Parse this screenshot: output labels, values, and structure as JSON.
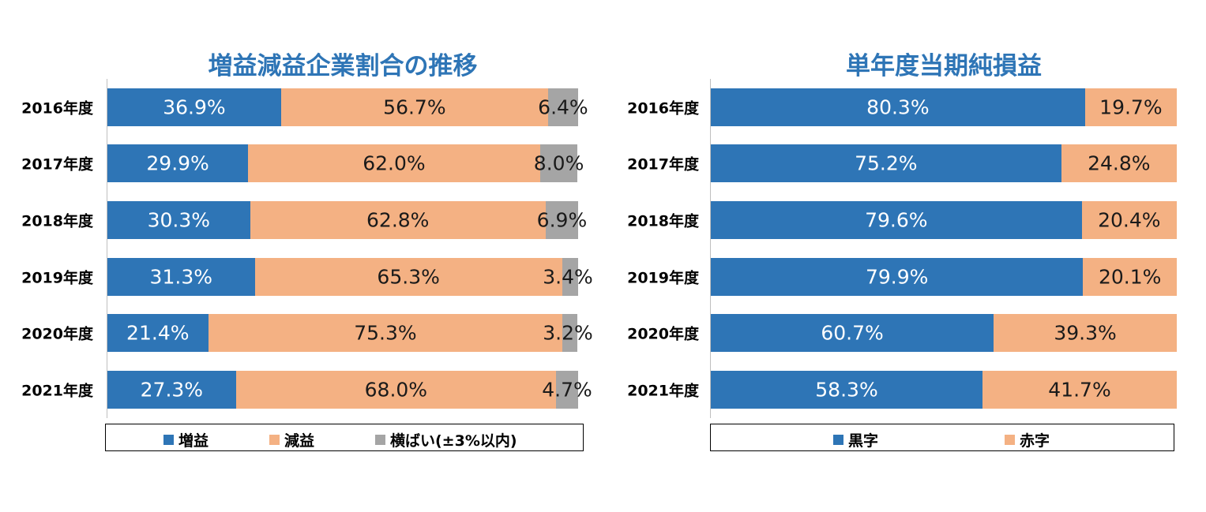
{
  "colors": {
    "blue": "#2e75b6",
    "orange": "#f4b183",
    "gray": "#a5a5a5"
  },
  "chart_data": [
    {
      "type": "bar",
      "orientation": "horizontal",
      "stacked": true,
      "percent": true,
      "title": "増益減益企業割合の推移",
      "categories": [
        "2016年度",
        "2017年度",
        "2018年度",
        "2019年度",
        "2020年度",
        "2021年度"
      ],
      "series": [
        {
          "name": "増益",
          "color": "#2e75b6",
          "values": [
            36.9,
            29.9,
            30.3,
            31.3,
            21.4,
            27.3
          ],
          "labels": [
            "36.9%",
            "29.9%",
            "30.3%",
            "31.3%",
            "21.4%",
            "27.3%"
          ]
        },
        {
          "name": "減益",
          "color": "#f4b183",
          "values": [
            56.7,
            62.0,
            62.8,
            65.3,
            75.3,
            68.0
          ],
          "labels": [
            "56.7%",
            "62.0%",
            "62.8%",
            "65.3%",
            "75.3%",
            "68.0%"
          ]
        },
        {
          "name": "横ばい(±3%以内)",
          "color": "#a5a5a5",
          "values": [
            6.4,
            8.0,
            6.9,
            3.4,
            3.2,
            4.7
          ],
          "labels": [
            "6.4%",
            "8.0%",
            "6.9%",
            "3.4%",
            "3.2%",
            "4.7%"
          ]
        }
      ],
      "xlim": [
        0,
        100
      ],
      "legend_position": "bottom"
    },
    {
      "type": "bar",
      "orientation": "horizontal",
      "stacked": true,
      "percent": true,
      "title": "単年度当期純損益",
      "categories": [
        "2016年度",
        "2017年度",
        "2018年度",
        "2019年度",
        "2020年度",
        "2021年度"
      ],
      "series": [
        {
          "name": "黒字",
          "color": "#2e75b6",
          "values": [
            80.3,
            75.2,
            79.6,
            79.9,
            60.7,
            58.3
          ],
          "labels": [
            "80.3%",
            "75.2%",
            "79.6%",
            "79.9%",
            "60.7%",
            "58.3%"
          ]
        },
        {
          "name": "赤字",
          "color": "#f4b183",
          "values": [
            19.7,
            24.8,
            20.4,
            20.1,
            39.3,
            41.7
          ],
          "labels": [
            "19.7%",
            "24.8%",
            "20.4%",
            "20.1%",
            "39.3%",
            "41.7%"
          ]
        }
      ],
      "xlim": [
        0,
        100
      ],
      "legend_position": "bottom"
    }
  ]
}
